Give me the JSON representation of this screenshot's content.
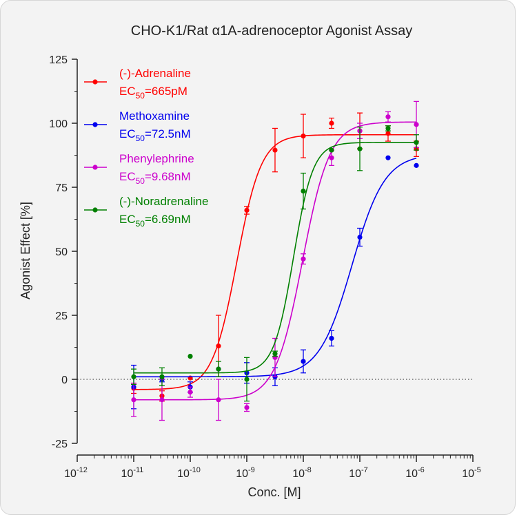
{
  "chart_data": {
    "type": "scatter",
    "title": "CHO-K1/Rat α1A-adrenoceptor Agonist Assay",
    "xlabel": "Conc. [M]",
    "ylabel": "Agonist Effect [%]",
    "x_scale": "log",
    "xlim": [
      1e-12,
      1e-05
    ],
    "ylim": [
      -25,
      125
    ],
    "x_ticks": [
      {
        "base": "10",
        "exp": "-12"
      },
      {
        "base": "10",
        "exp": "-11"
      },
      {
        "base": "10",
        "exp": "-10"
      },
      {
        "base": "10",
        "exp": "-9"
      },
      {
        "base": "10",
        "exp": "-8"
      },
      {
        "base": "10",
        "exp": "-7"
      },
      {
        "base": "10",
        "exp": "-6"
      },
      {
        "base": "10",
        "exp": "-5"
      }
    ],
    "y_ticks": [
      "-25",
      "0",
      "25",
      "50",
      "75",
      "100",
      "125"
    ],
    "y_tick_values": [
      -25,
      0,
      25,
      50,
      75,
      100,
      125
    ],
    "reference_line": {
      "y": 0,
      "style": "dotted"
    },
    "grid": false,
    "legend_position": "top-left",
    "series": [
      {
        "name": "(-)-Adrenaline",
        "ec50_prefix": "EC",
        "ec50_sub": "50",
        "ec50_value": "=665pM",
        "color": "#ff0000",
        "fit": {
          "bottom": -4,
          "top": 95.5,
          "ec50": 6.65e-10,
          "hill": 2.0
        },
        "points": [
          {
            "x": 1e-11,
            "y": -3.5,
            "err": 2
          },
          {
            "x": 3.16e-11,
            "y": -6.5,
            "err": 2
          },
          {
            "x": 1e-10,
            "y": 0.5,
            "err": 0
          },
          {
            "x": 3.16e-10,
            "y": 13,
            "err": 12
          },
          {
            "x": 1e-09,
            "y": 66,
            "err": 1.5
          },
          {
            "x": 3.16e-09,
            "y": 89.5,
            "err": 8.5
          },
          {
            "x": 1e-08,
            "y": 95,
            "err": 8.5
          },
          {
            "x": 3.16e-08,
            "y": 100,
            "err": 2
          },
          {
            "x": 1e-07,
            "y": 97,
            "err": 7
          },
          {
            "x": 3.16e-07,
            "y": 96,
            "err": 3
          },
          {
            "x": 1e-06,
            "y": 90,
            "err": 3
          }
        ]
      },
      {
        "name": "Methoxamine",
        "ec50_prefix": "EC",
        "ec50_sub": "50",
        "ec50_value": "=72.5nM",
        "color": "#0000ee",
        "fit": {
          "bottom": 1,
          "top": 88,
          "ec50": 7.25e-08,
          "hill": 1.5
        },
        "points": [
          {
            "x": 1e-11,
            "y": -3,
            "err": 8.5
          },
          {
            "x": 3.16e-11,
            "y": 0,
            "err": 1
          },
          {
            "x": 1e-10,
            "y": -3,
            "err": 2
          },
          {
            "x": 3.16e-10,
            "y": 4,
            "err": 0
          },
          {
            "x": 1e-09,
            "y": 2.5,
            "err": 4
          },
          {
            "x": 3.16e-09,
            "y": 1,
            "err": 3.5
          },
          {
            "x": 1e-08,
            "y": 7,
            "err": 4.5
          },
          {
            "x": 3.16e-08,
            "y": 16,
            "err": 3
          },
          {
            "x": 1e-07,
            "y": 55.5,
            "err": 3.5
          },
          {
            "x": 3.16e-07,
            "y": 86.5,
            "err": 0
          },
          {
            "x": 1e-06,
            "y": 83.5,
            "err": 0
          }
        ]
      },
      {
        "name": "Phenylephrine",
        "ec50_prefix": "EC",
        "ec50_sub": "50",
        "ec50_value": "=9.68nM",
        "color": "#cc00cc",
        "fit": {
          "bottom": -8,
          "top": 100.5,
          "ec50": 9.68e-09,
          "hill": 1.8
        },
        "points": [
          {
            "x": 1e-11,
            "y": -8,
            "err": 6.5
          },
          {
            "x": 3.16e-11,
            "y": -8,
            "err": 8
          },
          {
            "x": 1e-10,
            "y": -5,
            "err": 2
          },
          {
            "x": 3.16e-10,
            "y": -8,
            "err": 8
          },
          {
            "x": 1e-09,
            "y": -11,
            "err": 1.5
          },
          {
            "x": 3.16e-09,
            "y": 8.5,
            "err": 7.5
          },
          {
            "x": 1e-08,
            "y": 47,
            "err": 2
          },
          {
            "x": 3.16e-08,
            "y": 86.5,
            "err": 3
          },
          {
            "x": 1e-07,
            "y": 97,
            "err": 3
          },
          {
            "x": 3.16e-07,
            "y": 102.5,
            "err": 2
          },
          {
            "x": 1e-06,
            "y": 99.5,
            "err": 9
          }
        ]
      },
      {
        "name": "(-)-Noradrenaline",
        "ec50_prefix": "EC",
        "ec50_sub": "50",
        "ec50_value": "=6.69nM",
        "color": "#008000",
        "fit": {
          "bottom": 2.5,
          "top": 92.5,
          "ec50": 6.69e-09,
          "hill": 2.5
        },
        "points": [
          {
            "x": 1e-11,
            "y": 1,
            "err": 3
          },
          {
            "x": 3.16e-11,
            "y": 1,
            "err": 3.5
          },
          {
            "x": 1e-10,
            "y": 9,
            "err": 0
          },
          {
            "x": 3.16e-10,
            "y": 4,
            "err": 3
          },
          {
            "x": 1e-09,
            "y": 0,
            "err": 8.5
          },
          {
            "x": 3.16e-09,
            "y": 10,
            "err": 1
          },
          {
            "x": 1e-08,
            "y": 73.5,
            "err": 7
          },
          {
            "x": 3.16e-08,
            "y": 89.5,
            "err": 0
          },
          {
            "x": 1e-07,
            "y": 90,
            "err": 8.5
          },
          {
            "x": 3.16e-07,
            "y": 98,
            "err": 1
          },
          {
            "x": 1e-06,
            "y": 92.5,
            "err": 3
          }
        ]
      }
    ]
  }
}
